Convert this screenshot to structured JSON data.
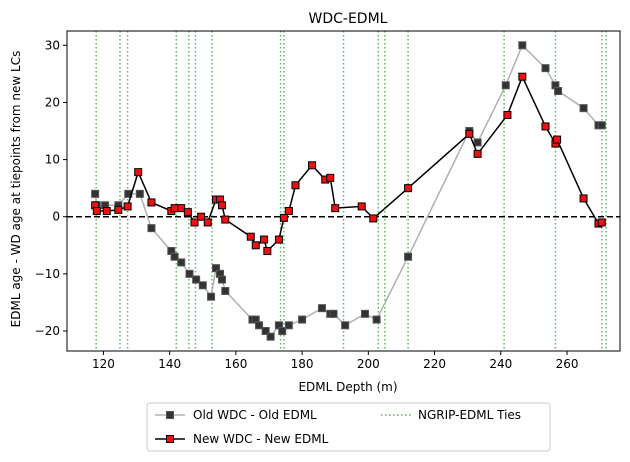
{
  "chart_data": {
    "type": "line",
    "title": "WDC-EDML",
    "xlabel": "EDML Depth (m)",
    "ylabel": "EDML age - WD age at tiepoints from new LCs",
    "xlim": [
      109,
      276
    ],
    "ylim": [
      -23.5,
      32.5
    ],
    "xticks": [
      120,
      140,
      160,
      180,
      200,
      220,
      240,
      260
    ],
    "yticks": [
      -20,
      -10,
      0,
      10,
      20,
      30
    ],
    "grid": false,
    "legend_placement": "below plot, two columns",
    "zero_line": {
      "y": 0,
      "style": "dashed",
      "color": "#000000"
    },
    "ngrip_edml_ties": [
      117.8,
      125,
      127.3,
      142,
      145.8,
      147.8,
      152.8,
      173.5,
      174.5,
      192.5,
      203,
      205,
      212,
      241,
      256.5,
      270.5,
      271.8
    ],
    "series": [
      {
        "name": "Old WDC - Old EDML",
        "color": "#333333",
        "line_color": "#b0b0b0",
        "marker": "square",
        "points": [
          [
            117.5,
            4
          ],
          [
            118,
            2
          ],
          [
            120.5,
            2
          ],
          [
            124.5,
            2
          ],
          [
            127.5,
            4
          ],
          [
            131,
            4
          ],
          [
            134.5,
            -2
          ],
          [
            140.5,
            -6
          ],
          [
            141.5,
            -7
          ],
          [
            143.5,
            -8
          ],
          [
            146,
            -10
          ],
          [
            148,
            -11
          ],
          [
            150,
            -12
          ],
          [
            152.5,
            -14
          ],
          [
            154,
            -9
          ],
          [
            155.2,
            -10
          ],
          [
            155.8,
            -11
          ],
          [
            156.8,
            -13
          ],
          [
            165,
            -18
          ],
          [
            166,
            -18
          ],
          [
            167,
            -19
          ],
          [
            169,
            -20
          ],
          [
            170.5,
            -21
          ],
          [
            173,
            -19
          ],
          [
            174,
            -20
          ],
          [
            176,
            -19
          ],
          [
            180,
            -18
          ],
          [
            186,
            -16
          ],
          [
            188.5,
            -17
          ],
          [
            189.5,
            -17
          ],
          [
            193,
            -19
          ],
          [
            199,
            -17
          ],
          [
            202.5,
            -18
          ],
          [
            212,
            -7
          ],
          [
            230.5,
            15
          ],
          [
            233,
            13
          ],
          [
            241.5,
            23
          ],
          [
            246.5,
            30
          ],
          [
            253.5,
            26
          ],
          [
            256.5,
            23
          ],
          [
            257.3,
            22
          ],
          [
            265,
            19
          ],
          [
            269.5,
            16
          ],
          [
            270.5,
            16
          ]
        ]
      },
      {
        "name": "New WDC - New EDML",
        "color": "#ee1111",
        "line_color": "#000000",
        "marker": "square",
        "points": [
          [
            117.5,
            2
          ],
          [
            118,
            1
          ],
          [
            121,
            1
          ],
          [
            124.5,
            1.2
          ],
          [
            127.3,
            1.8
          ],
          [
            130.5,
            7.8
          ],
          [
            134.5,
            2.5
          ],
          [
            140.5,
            1
          ],
          [
            141.5,
            1.5
          ],
          [
            143.5,
            1.5
          ],
          [
            145.5,
            0.8
          ],
          [
            147.5,
            -1
          ],
          [
            149.5,
            0
          ],
          [
            151.5,
            -1
          ],
          [
            154,
            3
          ],
          [
            155.2,
            3
          ],
          [
            155.8,
            2
          ],
          [
            156.8,
            -0.5
          ],
          [
            164.5,
            -3.5
          ],
          [
            166,
            -5
          ],
          [
            168.5,
            -4
          ],
          [
            169.5,
            -6
          ],
          [
            173,
            -4
          ],
          [
            174.5,
            -0.2
          ],
          [
            176,
            1
          ],
          [
            178,
            5.5
          ],
          [
            183,
            9
          ],
          [
            187,
            6.5
          ],
          [
            188.5,
            6.8
          ],
          [
            190,
            1.5
          ],
          [
            198,
            1.8
          ],
          [
            201.5,
            -0.3
          ],
          [
            212,
            5
          ],
          [
            230.5,
            14.5
          ],
          [
            233,
            11
          ],
          [
            242,
            17.8
          ],
          [
            246.5,
            24.5
          ],
          [
            253.5,
            15.8
          ],
          [
            256.5,
            12.8
          ],
          [
            257,
            13.5
          ],
          [
            265,
            3.2
          ],
          [
            269.5,
            -1.2
          ],
          [
            270.5,
            -1
          ]
        ]
      },
      {
        "name": "NGRIP-EDML Ties",
        "color": "#5cb85c",
        "style": "dotted"
      }
    ]
  }
}
